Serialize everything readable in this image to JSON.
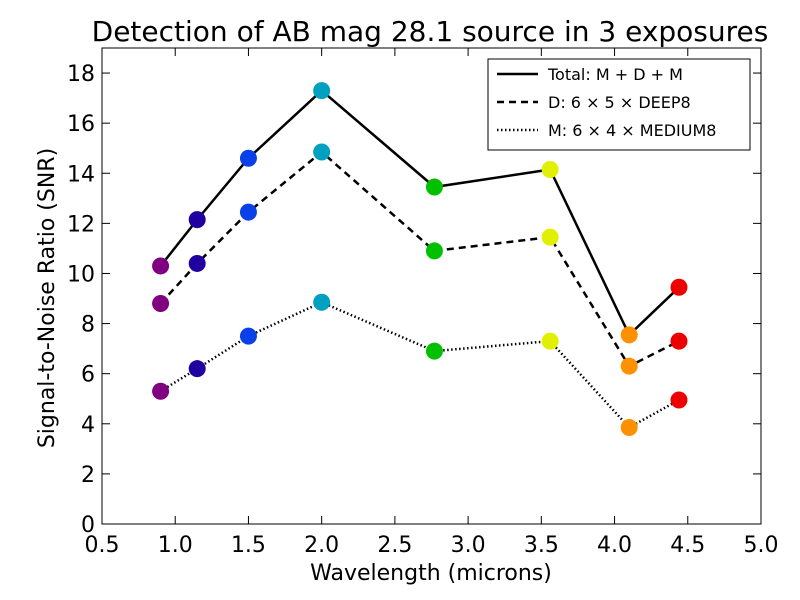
{
  "chart_data": {
    "type": "line",
    "title": "Detection of AB mag 28.1 source in 3 exposures",
    "xlabel": "Wavelength (microns)",
    "ylabel": "Signal-to-Noise Ratio (SNR)",
    "xlim": [
      0.5,
      5.0
    ],
    "ylim": [
      0,
      19
    ],
    "xticks": [
      0.5,
      1.0,
      1.5,
      2.0,
      2.5,
      3.0,
      3.5,
      4.0,
      4.5,
      5.0
    ],
    "xtick_labels": [
      "0.5",
      "1.0",
      "1.5",
      "2.0",
      "2.5",
      "3.0",
      "3.5",
      "4.0",
      "4.5",
      "5.0"
    ],
    "yticks": [
      0,
      2,
      4,
      6,
      8,
      10,
      12,
      14,
      16,
      18
    ],
    "ytick_labels": [
      "0",
      "2",
      "4",
      "6",
      "8",
      "10",
      "12",
      "14",
      "16",
      "18"
    ],
    "grid": false,
    "legend_position": "top-right",
    "x": [
      0.9,
      1.15,
      1.5,
      2.0,
      2.77,
      3.56,
      4.1,
      4.44
    ],
    "point_colors": [
      "#800080",
      "#2000a0",
      "#0a40e8",
      "#00a0c0",
      "#00c000",
      "#e0f000",
      "#ff9000",
      "#ee0000"
    ],
    "series": [
      {
        "name": "Total: M + D + M",
        "style": "solid",
        "values": [
          10.3,
          12.15,
          14.6,
          17.3,
          13.45,
          14.15,
          7.55,
          9.45
        ]
      },
      {
        "name": "D: 6 × 5 × DEEP8",
        "style": "dashed",
        "values": [
          8.8,
          10.4,
          12.45,
          14.85,
          10.9,
          11.45,
          6.3,
          7.3
        ]
      },
      {
        "name": "M: 6 × 4 × MEDIUM8",
        "style": "dotted",
        "values": [
          5.3,
          6.2,
          7.5,
          8.85,
          6.9,
          7.3,
          3.85,
          4.95
        ]
      }
    ]
  }
}
